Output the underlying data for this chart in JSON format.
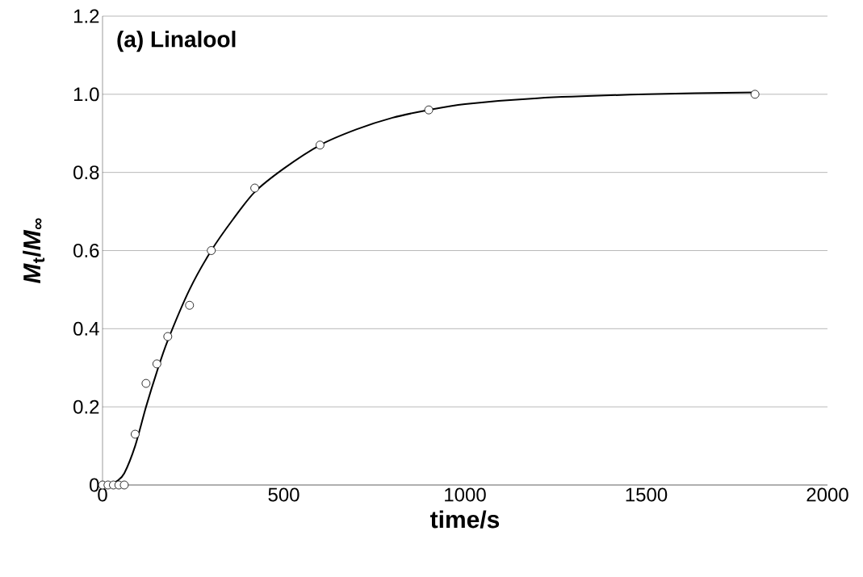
{
  "chart_data": {
    "type": "scatter",
    "xlabel": "time/s",
    "ylabel": "*M*$_{t}$/*M*$_{∞}$",
    "annotations": [
      "(a) Linalool"
    ],
    "xlim": [
      0,
      2000
    ],
    "xticks": [
      0,
      500,
      1000,
      1500,
      2000
    ],
    "ylim": [
      0,
      1.2
    ],
    "yticks": [
      0,
      0.2,
      0.4,
      0.6,
      0.8,
      {
        "value": 1,
        "label": "1.0"
      },
      1.2
    ],
    "grid": "y",
    "series": [
      {
        "type": "scatter",
        "marker": "circle",
        "color": "#000000",
        "x": [
          0,
          15,
          30,
          45,
          60,
          90,
          120,
          150,
          180,
          240,
          300,
          420,
          600,
          900,
          1800
        ],
        "values": [
          0,
          0,
          0,
          0,
          0,
          0.13,
          0.26,
          0.31,
          0.38,
          0.46,
          0.6,
          0.76,
          0.87,
          0.96,
          1.0
        ]
      },
      {
        "type": "line",
        "marker": "none",
        "line_style": "solid",
        "color": "#000000",
        "x": [
          20,
          40,
          60,
          90,
          120,
          150,
          180,
          240,
          300,
          360,
          420,
          500,
          600,
          700,
          800,
          900,
          1000,
          1200,
          1500,
          1800
        ],
        "values": [
          0,
          0.01,
          0.03,
          0.1,
          0.2,
          0.29,
          0.37,
          0.5,
          0.6,
          0.68,
          0.75,
          0.81,
          0.87,
          0.91,
          0.94,
          0.96,
          0.975,
          0.99,
          1.0,
          1.005
        ]
      }
    ]
  }
}
